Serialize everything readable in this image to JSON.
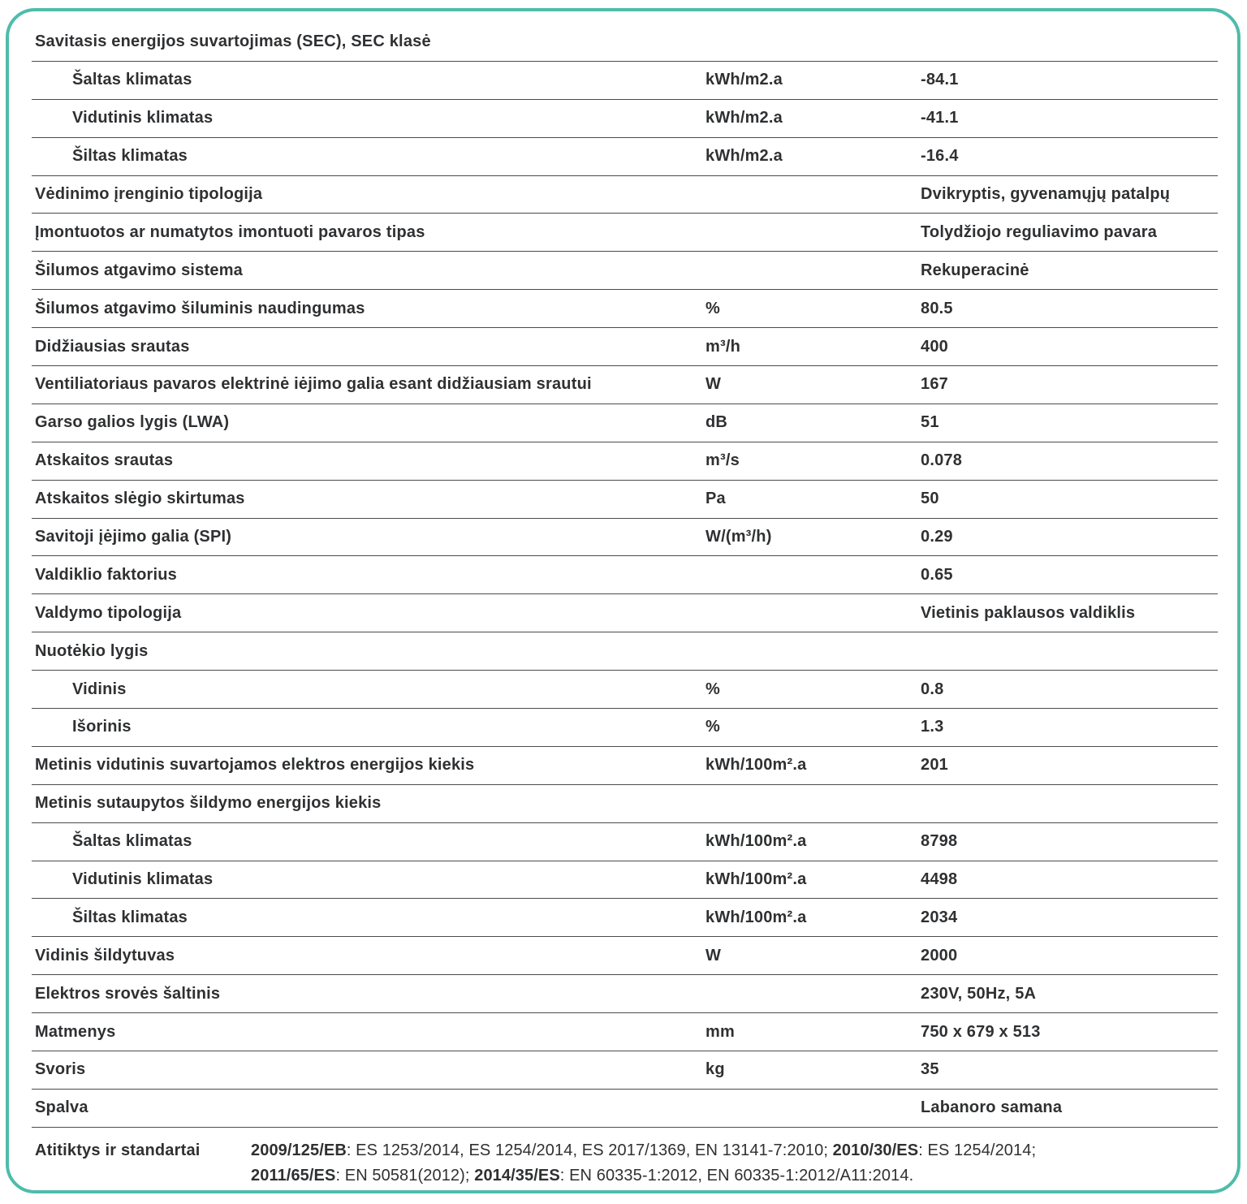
{
  "colors": {
    "accent": "#4fbcab",
    "separator": "#4a4b4d",
    "text": "#2f3032",
    "background": "#ffffff"
  },
  "table": {
    "rows": [
      {
        "label": "Savitasis energijos suvartojimas (SEC), SEC klasė",
        "unit": "",
        "value": "",
        "indent": false
      },
      {
        "label": "Šaltas klimatas",
        "unit": "kWh/m2.a",
        "value": "-84.1",
        "indent": true
      },
      {
        "label": "Vidutinis klimatas",
        "unit": "kWh/m2.a",
        "value": "-41.1",
        "indent": true
      },
      {
        "label": "Šiltas klimatas",
        "unit": "kWh/m2.a",
        "value": "-16.4",
        "indent": true
      },
      {
        "label": "Vėdinimo įrenginio tipologija",
        "unit": "",
        "value": "Dvikryptis, gyvenamųjų patalpų",
        "indent": false
      },
      {
        "label": "Įmontuotos ar numatytos imontuoti pavaros tipas",
        "unit": "",
        "value": "Tolydžiojo reguliavimo pavara",
        "indent": false
      },
      {
        "label": "Šilumos atgavimo sistema",
        "unit": "",
        "value": "Rekuperacinė",
        "indent": false
      },
      {
        "label": "Šilumos atgavimo šiluminis naudingumas",
        "unit": "%",
        "value": "80.5",
        "indent": false
      },
      {
        "label": "Didžiausias srautas",
        "unit": "m³/h",
        "value": "400",
        "indent": false
      },
      {
        "label": "Ventiliatoriaus pavaros elektrinė iėjimo galia esant didžiausiam srautui",
        "unit": "W",
        "value": "167",
        "indent": false
      },
      {
        "label": "Garso galios lygis (LWA)",
        "unit": "dB",
        "value": "51",
        "indent": false
      },
      {
        "label": "Atskaitos srautas",
        "unit": "m³/s",
        "value": "0.078",
        "indent": false
      },
      {
        "label": "Atskaitos slėgio skirtumas",
        "unit": "Pa",
        "value": "50",
        "indent": false
      },
      {
        "label": "Savitoji įėjimo galia (SPI)",
        "unit": "W/(m³/h)",
        "value": "0.29",
        "indent": false
      },
      {
        "label": "Valdiklio faktorius",
        "unit": "",
        "value": "0.65",
        "indent": false
      },
      {
        "label": "Valdymo tipologija",
        "unit": "",
        "value": "Vietinis paklausos valdiklis",
        "indent": false
      },
      {
        "label": "Nuotėkio lygis",
        "unit": "",
        "value": "",
        "indent": false
      },
      {
        "label": "Vidinis",
        "unit": "%",
        "value": "0.8",
        "indent": true
      },
      {
        "label": "Išorinis",
        "unit": "%",
        "value": "1.3",
        "indent": true
      },
      {
        "label": "Metinis vidutinis suvartojamos elektros energijos kiekis",
        "unit": "kWh/100m².a",
        "value": "201",
        "indent": false
      },
      {
        "label": "Metinis sutaupytos šildymo energijos kiekis",
        "unit": "",
        "value": "",
        "indent": false
      },
      {
        "label": "Šaltas klimatas",
        "unit": "kWh/100m².a",
        "value": "8798",
        "indent": true
      },
      {
        "label": "Vidutinis klimatas",
        "unit": "kWh/100m².a",
        "value": "4498",
        "indent": true
      },
      {
        "label": "Šiltas klimatas",
        "unit": "kWh/100m².a",
        "value": "2034",
        "indent": true
      },
      {
        "label": "Vidinis šildytuvas",
        "unit": "W",
        "value": "2000",
        "indent": false
      },
      {
        "label": "Elektros srovės šaltinis",
        "unit": "",
        "value": "230V, 50Hz, 5A",
        "indent": false
      },
      {
        "label": "Matmenys",
        "unit": "mm",
        "value": "750 x 679 x 513",
        "indent": false
      },
      {
        "label": "Svoris",
        "unit": "kg",
        "value": "35",
        "indent": false
      },
      {
        "label": "Spalva",
        "unit": "",
        "value": "Labanoro samana",
        "indent": false
      }
    ]
  },
  "standards": {
    "label": "Atitiktys ir standartai",
    "segments": [
      {
        "text": "2009/125/EB",
        "bold": true
      },
      {
        "text": ": ES 1253/2014, ES 1254/2014, ES 2017/1369, EN 13141-7:2010; ",
        "bold": false
      },
      {
        "text": "2010/30/ES",
        "bold": true
      },
      {
        "text": ": ES 1254/2014; ",
        "bold": false
      },
      {
        "text": "2011/65/ES",
        "bold": true
      },
      {
        "text": ": EN 50581(2012); ",
        "bold": false
      },
      {
        "text": "2014/35/ES",
        "bold": true
      },
      {
        "text": ": EN 60335-1:2012, EN 60335-1:2012/A11:2014.",
        "bold": false
      }
    ]
  }
}
